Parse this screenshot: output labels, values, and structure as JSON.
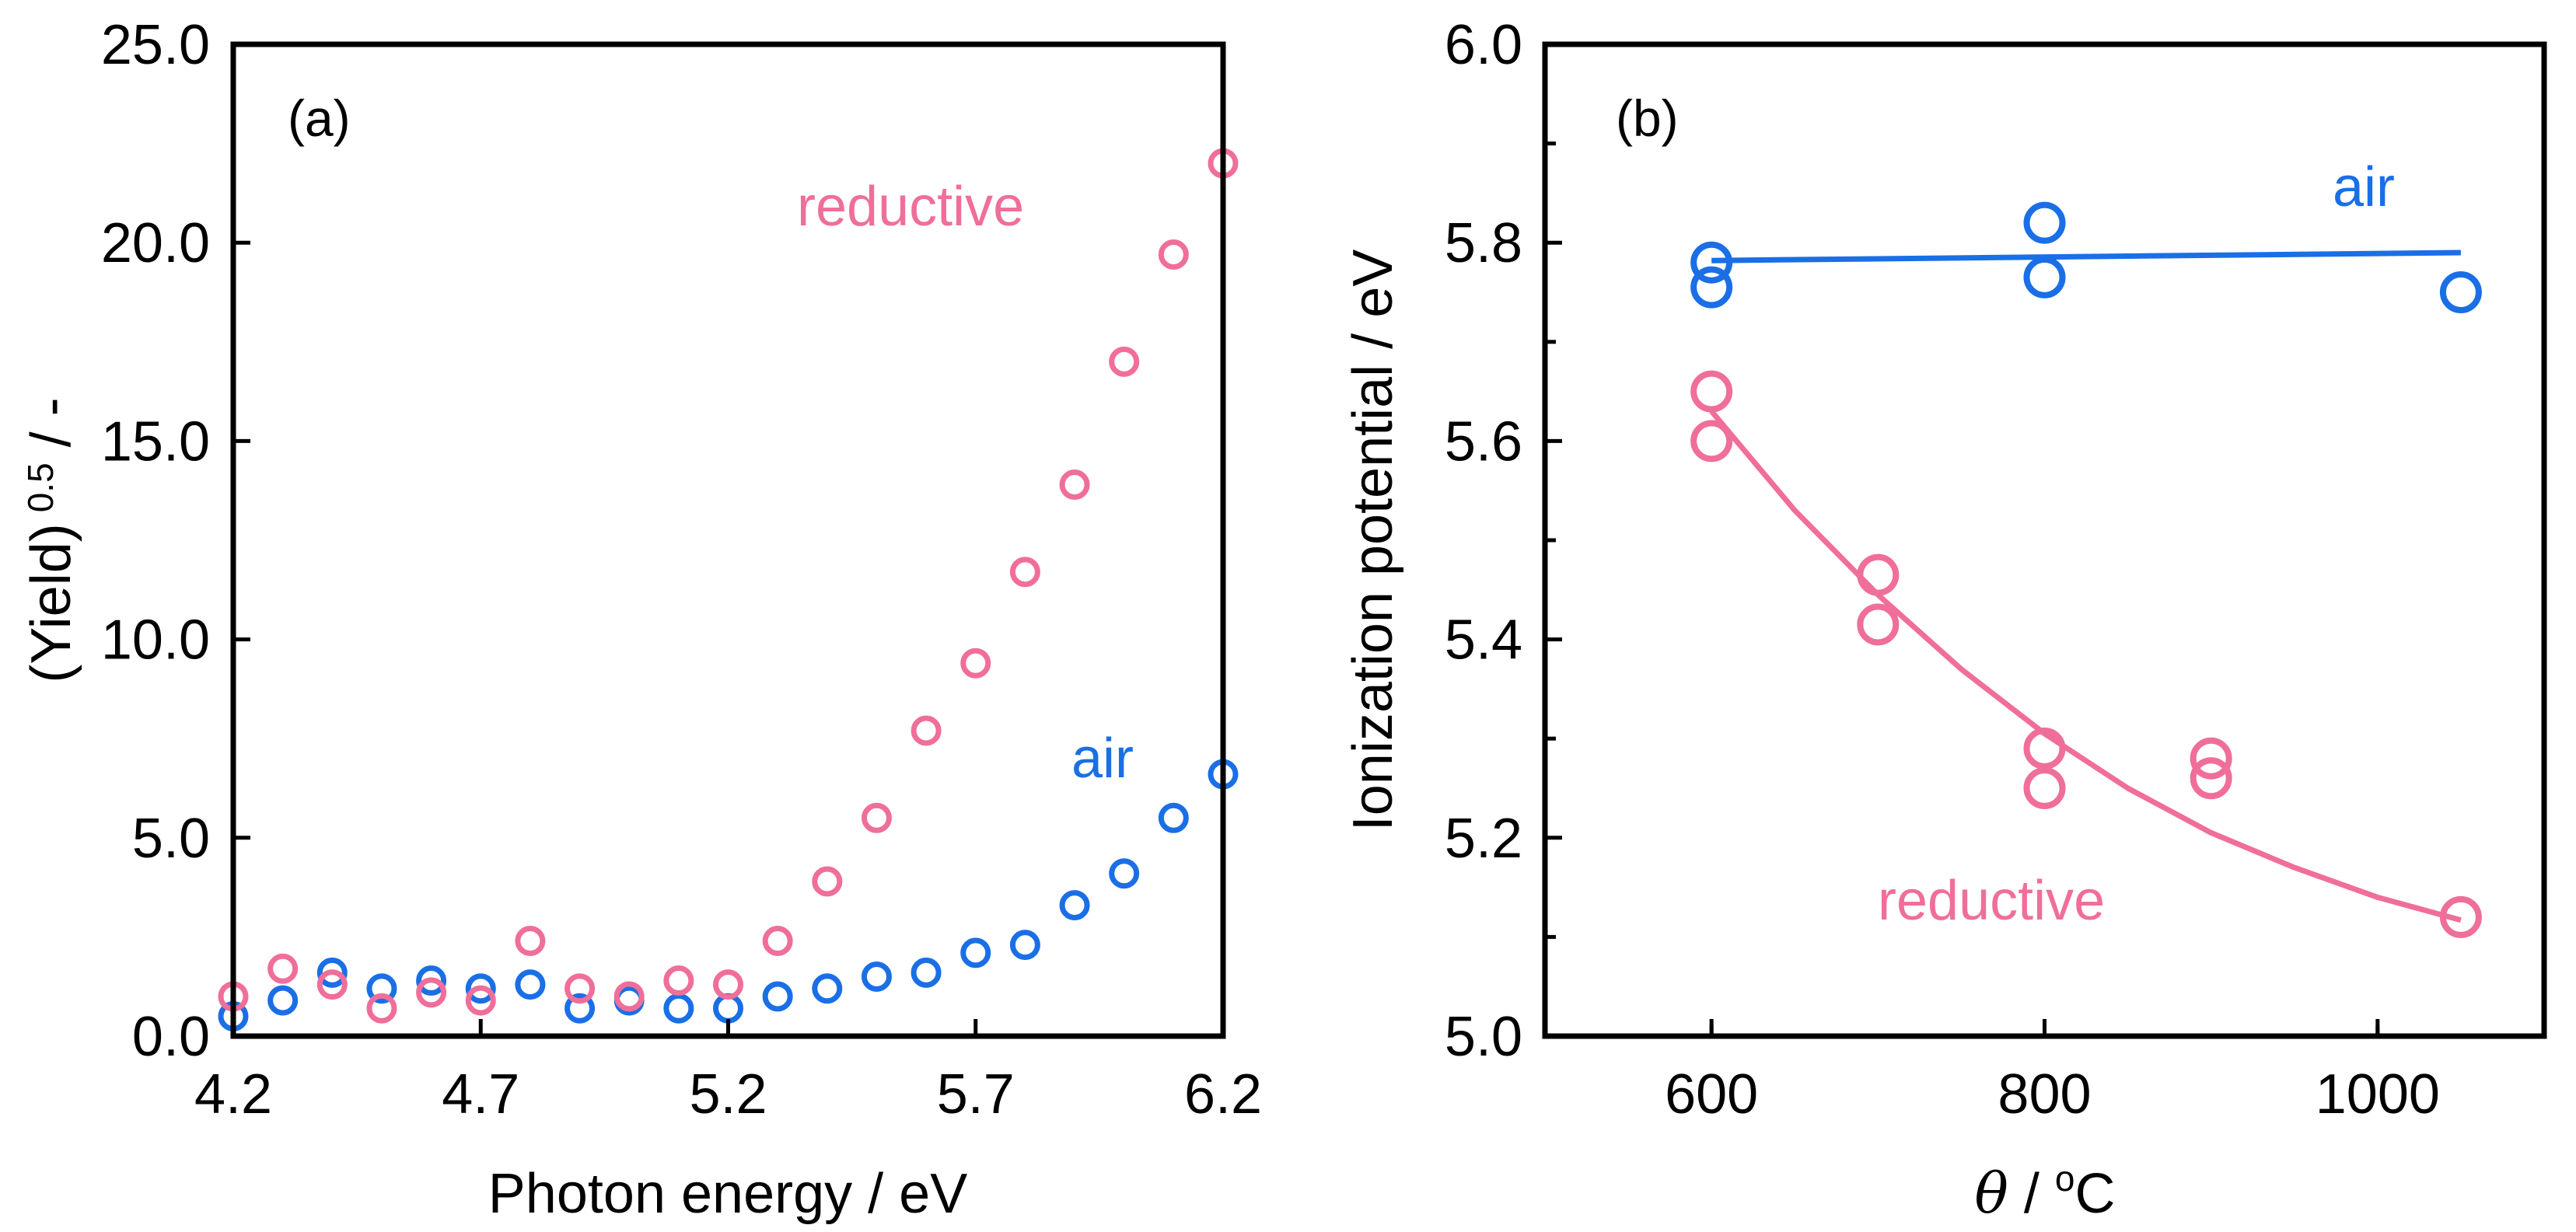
{
  "colors": {
    "air": "#1a6fe6",
    "reductive": "#f06e9a",
    "axis": "#000000"
  },
  "chart_data": [
    {
      "type": "scatter",
      "panel_label": "(a)",
      "xlabel": "Photon energy / eV",
      "ylabel_main": "(Yield)",
      "ylabel_exp": "0.5",
      "ylabel_tail": " / -",
      "xlim": [
        4.2,
        6.2
      ],
      "ylim": [
        0,
        25
      ],
      "xticks": [
        4.2,
        4.7,
        5.2,
        5.7,
        6.2
      ],
      "xtick_labels": [
        "4.2",
        "4.7",
        "5.2",
        "5.7",
        "6.2"
      ],
      "yticks": [
        0,
        5,
        10,
        15,
        20,
        25
      ],
      "ytick_labels": [
        "0.0",
        "5.0",
        "10.0",
        "15.0",
        "20.0",
        "25.0"
      ],
      "series": [
        {
          "name": "air",
          "label": "air",
          "x": [
            4.2,
            4.3,
            4.4,
            4.5,
            4.6,
            4.7,
            4.8,
            4.9,
            5.0,
            5.1,
            5.2,
            5.3,
            5.4,
            5.5,
            5.6,
            5.7,
            5.8,
            5.9,
            6.0,
            6.1,
            6.2
          ],
          "y": [
            0.5,
            0.9,
            1.6,
            1.2,
            1.4,
            1.2,
            1.3,
            0.7,
            0.9,
            0.7,
            0.7,
            1.0,
            1.2,
            1.5,
            1.6,
            2.1,
            2.3,
            3.3,
            4.1,
            5.5,
            6.6
          ]
        },
        {
          "name": "reductive",
          "label": "reductive",
          "x": [
            4.2,
            4.3,
            4.4,
            4.5,
            4.6,
            4.7,
            4.8,
            4.9,
            5.0,
            5.1,
            5.2,
            5.3,
            5.4,
            5.5,
            5.6,
            5.7,
            5.8,
            5.9,
            6.0,
            6.1,
            6.2
          ],
          "y": [
            1.0,
            1.7,
            1.3,
            0.7,
            1.1,
            0.9,
            2.4,
            1.2,
            1.0,
            1.4,
            1.3,
            2.4,
            3.9,
            5.5,
            7.7,
            9.4,
            11.7,
            13.9,
            17.0,
            19.7,
            22.0
          ]
        }
      ]
    },
    {
      "type": "scatter",
      "panel_label": "(b)",
      "xlabel_symbol": "θ",
      "xlabel_sep": " / ",
      "xlabel_unit_sup": "o",
      "xlabel_unit": "C",
      "ylabel": "Ionization potential / eV",
      "xlim": [
        500,
        1100
      ],
      "ylim": [
        5.0,
        6.0
      ],
      "xticks": [
        600,
        800,
        1000
      ],
      "xtick_labels": [
        "600",
        "800",
        "1000"
      ],
      "yticks": [
        5.0,
        5.2,
        5.4,
        5.6,
        5.8,
        6.0
      ],
      "ytick_labels": [
        "5.0",
        "5.2",
        "5.4",
        "5.6",
        "5.8",
        "6.0"
      ],
      "series": [
        {
          "name": "air",
          "label": "air",
          "x": [
            600,
            600,
            800,
            800,
            1050
          ],
          "y": [
            5.78,
            5.755,
            5.82,
            5.765,
            5.75
          ],
          "fit_x": [
            600,
            1050
          ],
          "fit_y": [
            5.782,
            5.79
          ]
        },
        {
          "name": "reductive",
          "label": "reductive",
          "x": [
            600,
            600,
            700,
            700,
            800,
            800,
            900,
            900,
            1050
          ],
          "y": [
            5.65,
            5.6,
            5.465,
            5.415,
            5.29,
            5.25,
            5.28,
            5.26,
            5.12
          ],
          "fit_x": [
            600,
            650,
            700,
            750,
            800,
            850,
            900,
            950,
            1000,
            1050
          ],
          "fit_y": [
            5.63,
            5.53,
            5.445,
            5.37,
            5.305,
            5.25,
            5.205,
            5.17,
            5.14,
            5.117
          ]
        }
      ]
    }
  ]
}
